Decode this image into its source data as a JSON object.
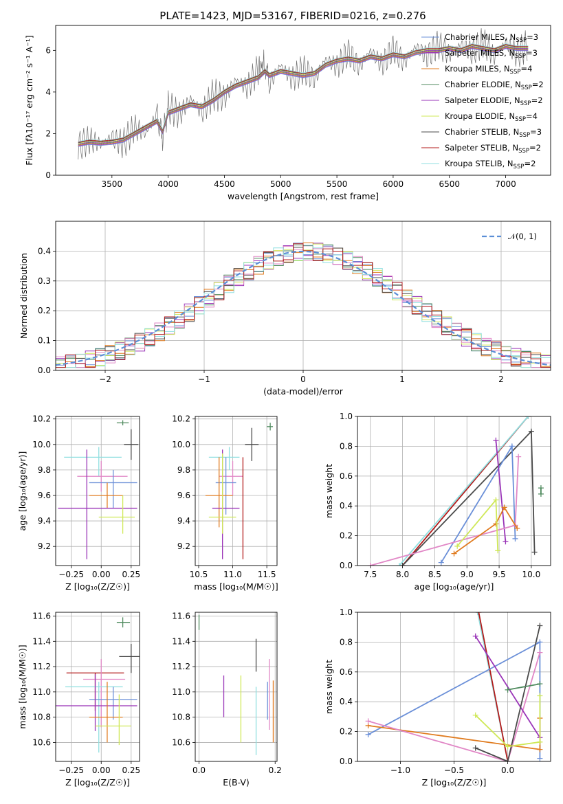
{
  "figure": {
    "title": "PLATE=1423, MJD=53167, FIBERID=0216, z=0.276"
  },
  "colors": [
    "#6a8fd8",
    "#9a35b8",
    "#e07b1f",
    "#4f8a5e",
    "#cfe857",
    "#4a4a4a",
    "#e187c6",
    "#8fdfe0",
    "#b31b1b"
  ],
  "chart_data": [
    {
      "id": "spectrum",
      "type": "line",
      "xlabel": "wavelength [Angstrom, rest frame]",
      "ylabel": "Flux [fλ10⁻¹⁷ erg cm⁻² s⁻¹ A⁻¹]",
      "xlim": [
        3000,
        7400
      ],
      "ylim": [
        0,
        7.2
      ],
      "xticks": [
        3500,
        4000,
        4500,
        5000,
        5500,
        6000,
        6500,
        7000
      ],
      "yticks": [
        0,
        2,
        4,
        6
      ],
      "grid": false,
      "legend_placement": "top-right",
      "legend": [
        {
          "label": "Chabrier MILES, N",
          "sub": "SSP",
          "tail": "=3",
          "color": "#6a8fd8"
        },
        {
          "label": "Salpeter MILES, N",
          "sub": "SSP",
          "tail": "=3",
          "color": "#9a35b8"
        },
        {
          "label": "Kroupa MILES, N",
          "sub": "SSP",
          "tail": "=4",
          "color": "#e07b1f"
        },
        {
          "label": "Chabrier ELODIE, N",
          "sub": "SSP",
          "tail": "=2",
          "color": "#4f8a5e"
        },
        {
          "label": "Salpeter ELODIE, N",
          "sub": "SSP",
          "tail": "=2",
          "color": "#9a35b8"
        },
        {
          "label": "Kroupa ELODIE, N",
          "sub": "SSP",
          "tail": "=4",
          "color": "#cfe857"
        },
        {
          "label": "Chabrier STELIB, N",
          "sub": "SSP",
          "tail": "=3",
          "color": "#4a4a4a"
        },
        {
          "label": "Salpeter STELIB, N",
          "sub": "SSP",
          "tail": "=2",
          "color": "#b31b1b"
        },
        {
          "label": "Kroupa STELIB, N",
          "sub": "SSP",
          "tail": "=2",
          "color": "#8fdfe0"
        }
      ],
      "model_curve": {
        "x": [
          3200,
          3300,
          3400,
          3500,
          3600,
          3700,
          3800,
          3900,
          3950,
          4000,
          4100,
          4200,
          4300,
          4400,
          4500,
          4600,
          4700,
          4800,
          4860,
          4900,
          5000,
          5100,
          5200,
          5300,
          5400,
          5500,
          5600,
          5700,
          5800,
          5900,
          6000,
          6100,
          6200,
          6300,
          6400,
          6500,
          6600,
          6700,
          6800,
          6900,
          7000,
          7100,
          7200
        ],
        "y": [
          1.5,
          1.6,
          1.55,
          1.6,
          1.7,
          2.0,
          2.3,
          2.6,
          2.1,
          3.0,
          3.2,
          3.4,
          3.3,
          3.6,
          4.0,
          4.3,
          4.5,
          4.7,
          5.0,
          4.8,
          5.0,
          4.9,
          4.8,
          4.9,
          5.3,
          5.5,
          5.6,
          5.5,
          5.7,
          5.6,
          5.8,
          5.7,
          5.9,
          6.0,
          6.0,
          6.1,
          6.0,
          6.2,
          6.1,
          6.0,
          6.2,
          6.1,
          6.1
        ]
      },
      "observed_spectrum": {
        "x": [
          3200,
          3300,
          3400,
          3500,
          3600,
          3700,
          3800,
          3900,
          3950,
          4000,
          4100,
          4200,
          4300,
          4400,
          4500,
          4600,
          4700,
          4800,
          4860,
          4900,
          5000,
          5100,
          5200,
          5300,
          5400,
          5500,
          5600,
          5700,
          5800,
          5900,
          6000,
          6100,
          6200,
          6300,
          6400,
          6500,
          6600,
          6700,
          6800,
          6900,
          7000,
          7100,
          7200
        ],
        "y": [
          1.4,
          1.7,
          1.5,
          1.8,
          1.5,
          2.3,
          2.0,
          2.9,
          1.8,
          3.3,
          2.9,
          3.7,
          3.0,
          3.9,
          3.7,
          4.6,
          4.2,
          5.1,
          5.4,
          4.4,
          5.3,
          4.6,
          5.1,
          4.6,
          5.6,
          5.2,
          5.9,
          5.2,
          6.0,
          5.3,
          6.1,
          5.4,
          6.2,
          5.7,
          6.3,
          5.8,
          6.3,
          5.9,
          6.4,
          5.7,
          6.4,
          5.8,
          6.3
        ]
      }
    },
    {
      "id": "residuals",
      "type": "histogram",
      "xlabel": "(data-model)/error",
      "ylabel": "Normed distribution",
      "xlim": [
        -2.5,
        2.5
      ],
      "ylim": [
        0,
        0.5
      ],
      "xticks": [
        -2,
        -1,
        0,
        1,
        2
      ],
      "yticks": [
        0.0,
        0.1,
        0.2,
        0.3,
        0.4
      ],
      "grid": true,
      "legend_placement": "top-right",
      "legend": [
        {
          "label": "𝒩(0, 1)",
          "color": "#5b8ed6",
          "style": "dashed"
        }
      ],
      "bin_width": 0.1,
      "bin_start": -2.5,
      "reference_curve": "normal(0,1)"
    },
    {
      "id": "age_vs_Z",
      "type": "errorbar",
      "xlabel": "Z [log₁₀(Z/Z☉)]",
      "ylabel": "age  [log₁₀(age/yr)]",
      "xlim": [
        -0.38,
        0.32
      ],
      "ylim": [
        9.05,
        10.22
      ],
      "xticks": [
        -0.25,
        0.0,
        0.25
      ],
      "xticklabels": [
        "−0.25",
        "0.00",
        "0.25"
      ],
      "yticks": [
        9.2,
        9.4,
        9.6,
        9.8,
        10.0,
        10.2
      ],
      "grid": true,
      "points": [
        {
          "x": 0.18,
          "y": 10.17,
          "xerr": [
            0.05,
            0.05
          ],
          "yerr": [
            0.02,
            0.02
          ],
          "color": "#4f8a5e"
        },
        {
          "x": 0.25,
          "y": 10.0,
          "xerr": [
            0.06,
            0.06
          ],
          "yerr": [
            0.12,
            0.12
          ],
          "color": "#4a4a4a"
        },
        {
          "x": -0.02,
          "y": 9.9,
          "xerr": [
            0.29,
            0.19
          ],
          "yerr": [
            0.15,
            0.08
          ],
          "color": "#8fdfe0"
        },
        {
          "x": 0.0,
          "y": 9.75,
          "xerr": [
            0.2,
            0.22
          ],
          "yerr": [
            0.12,
            0.12
          ],
          "color": "#e187c6"
        },
        {
          "x": 0.1,
          "y": 9.7,
          "xerr": [
            0.2,
            0.2
          ],
          "yerr": [
            0.2,
            0.1
          ],
          "color": "#6a8fd8"
        },
        {
          "x": 0.05,
          "y": 9.6,
          "xerr": [
            0.15,
            0.13
          ],
          "yerr": [
            0.1,
            0.1
          ],
          "color": "#e07b1f"
        },
        {
          "x": -0.12,
          "y": 9.5,
          "xerr": [
            0.24,
            0.42
          ],
          "yerr": [
            0.4,
            0.46
          ],
          "color": "#9a35b8"
        },
        {
          "x": 0.18,
          "y": 9.43,
          "xerr": [
            0.2,
            0.1
          ],
          "yerr": [
            0.13,
            0.17
          ],
          "color": "#cfe857"
        }
      ]
    },
    {
      "id": "age_vs_mass",
      "type": "errorbar",
      "xlabel": "mass [log₁₀(M/M☉)]",
      "ylabel": "",
      "xlim": [
        10.45,
        11.65
      ],
      "ylim": [
        9.05,
        10.22
      ],
      "xticks": [
        10.5,
        11.0,
        11.5
      ],
      "yticks": [
        9.2,
        9.4,
        9.6,
        9.8,
        10.0,
        10.2
      ],
      "grid": true,
      "points": [
        {
          "x": 11.55,
          "y": 10.14,
          "xerr": [
            0.05,
            0.04
          ],
          "yerr": [
            0.03,
            0.03
          ],
          "color": "#4f8a5e"
        },
        {
          "x": 11.28,
          "y": 10.0,
          "xerr": [
            0.1,
            0.1
          ],
          "yerr": [
            0.13,
            0.13
          ],
          "color": "#4a4a4a"
        },
        {
          "x": 10.95,
          "y": 9.9,
          "xerr": [
            0.3,
            0.15
          ],
          "yerr": [
            0.1,
            0.08
          ],
          "color": "#8fdfe0"
        },
        {
          "x": 11.0,
          "y": 9.75,
          "xerr": [
            0.2,
            0.15
          ],
          "yerr": [
            0.15,
            0.12
          ],
          "color": "#e187c6"
        },
        {
          "x": 10.9,
          "y": 9.7,
          "xerr": [
            0.15,
            0.15
          ],
          "yerr": [
            0.25,
            0.2
          ],
          "color": "#6a8fd8"
        },
        {
          "x": 10.8,
          "y": 9.6,
          "xerr": [
            0.2,
            0.2
          ],
          "yerr": [
            0.25,
            0.3
          ],
          "color": "#e07b1f"
        },
        {
          "x": 10.85,
          "y": 9.5,
          "xerr": [
            0.15,
            0.25
          ],
          "yerr": [
            0.4,
            0.46
          ],
          "color": "#9a35b8"
        },
        {
          "x": 10.85,
          "y": 9.43,
          "xerr": [
            0.2,
            0.2
          ],
          "yerr": [
            0.13,
            0.5
          ],
          "color": "#cfe857"
        },
        {
          "x": 11.15,
          "y": 9.6,
          "xerr": [
            0.0,
            0.0
          ],
          "yerr": [
            0.5,
            0.3
          ],
          "color": "#b31b1b"
        }
      ]
    },
    {
      "id": "weight_vs_age",
      "type": "line",
      "xlabel": "age  [log₁₀(age/yr)]",
      "ylabel": "mass weight",
      "xlim": [
        7.3,
        10.3
      ],
      "ylim": [
        0,
        1.0
      ],
      "xticks": [
        7.5,
        8.0,
        8.5,
        9.0,
        9.5,
        10.0
      ],
      "yticks": [
        0.0,
        0.2,
        0.4,
        0.6,
        0.8,
        1.0
      ],
      "grid": true,
      "series": [
        {
          "color": "#b31b1b",
          "x": [
            8.0,
            9.95
          ],
          "y": [
            0.0,
            1.0
          ]
        },
        {
          "color": "#8fdfe0",
          "x": [
            7.95,
            9.95
          ],
          "y": [
            0.0,
            1.0
          ]
        },
        {
          "color": "#4a4a4a",
          "x": [
            8.0,
            10.0,
            10.05
          ],
          "y": [
            0.0,
            0.9,
            0.09
          ]
        },
        {
          "color": "#6a8fd8",
          "x": [
            8.6,
            9.7,
            9.75
          ],
          "y": [
            0.02,
            0.8,
            0.18
          ]
        },
        {
          "color": "#9a35b8",
          "x": [
            9.45,
            9.6
          ],
          "y": [
            0.84,
            0.16
          ]
        },
        {
          "color": "#e187c6",
          "x": [
            7.5,
            9.75,
            9.8
          ],
          "y": [
            0.0,
            0.27,
            0.73
          ]
        },
        {
          "color": "#e07b1f",
          "x": [
            8.8,
            9.45,
            9.58,
            9.78
          ],
          "y": [
            0.08,
            0.28,
            0.39,
            0.25
          ]
        },
        {
          "color": "#cfe857",
          "x": [
            8.85,
            9.45,
            9.48
          ],
          "y": [
            0.13,
            0.44,
            0.1
          ]
        },
        {
          "color": "#4f8a5e",
          "x": [
            10.15,
            10.15
          ],
          "y": [
            0.48,
            0.52
          ]
        }
      ]
    },
    {
      "id": "mass_vs_Z",
      "type": "errorbar",
      "xlabel": "Z [log₁₀(Z/Z☉)]",
      "ylabel": "mass [log₁₀(M/M☉)]",
      "xlim": [
        -0.38,
        0.32
      ],
      "ylim": [
        10.45,
        11.63
      ],
      "xticks": [
        -0.25,
        0.0,
        0.25
      ],
      "xticklabels": [
        "−0.25",
        "0.00",
        "0.25"
      ],
      "yticks": [
        10.6,
        10.8,
        11.0,
        11.2,
        11.4,
        11.6
      ],
      "grid": true,
      "points": [
        {
          "x": 0.18,
          "y": 11.55,
          "xerr": [
            0.05,
            0.06
          ],
          "yerr": [
            0.04,
            0.04
          ],
          "color": "#4f8a5e"
        },
        {
          "x": 0.25,
          "y": 11.28,
          "xerr": [
            0.1,
            0.08
          ],
          "yerr": [
            0.13,
            0.1
          ],
          "color": "#4a4a4a"
        },
        {
          "x": -0.05,
          "y": 11.15,
          "xerr": [
            0.24,
            0.24
          ],
          "yerr": [
            0.3,
            0.0
          ],
          "color": "#b31b1b"
        },
        {
          "x": 0.0,
          "y": 11.1,
          "xerr": [
            0.15,
            0.2
          ],
          "yerr": [
            0.38,
            0.16
          ],
          "color": "#e187c6"
        },
        {
          "x": -0.02,
          "y": 11.04,
          "xerr": [
            0.28,
            0.2
          ],
          "yerr": [
            0.52,
            0.04
          ],
          "color": "#8fdfe0"
        },
        {
          "x": 0.1,
          "y": 10.94,
          "xerr": [
            0.2,
            0.2
          ],
          "yerr": [
            0.16,
            0.1
          ],
          "color": "#6a8fd8"
        },
        {
          "x": -0.05,
          "y": 10.89,
          "xerr": [
            0.33,
            0.35
          ],
          "yerr": [
            0.2,
            0.25
          ],
          "color": "#9a35b8"
        },
        {
          "x": 0.05,
          "y": 10.8,
          "xerr": [
            0.15,
            0.13
          ],
          "yerr": [
            0.2,
            0.28
          ],
          "color": "#e07b1f"
        },
        {
          "x": 0.15,
          "y": 10.73,
          "xerr": [
            0.2,
            0.1
          ],
          "yerr": [
            0.15,
            0.25
          ],
          "color": "#cfe857"
        }
      ]
    },
    {
      "id": "mass_vs_EBV",
      "type": "errorbar",
      "xlabel": "E(B-V)",
      "ylabel": "",
      "xlim": [
        -0.01,
        0.205
      ],
      "ylim": [
        10.45,
        11.63
      ],
      "xticks": [
        0.0,
        0.2
      ],
      "yticks": [
        10.6,
        10.8,
        11.0,
        11.2,
        11.4,
        11.6
      ],
      "grid": true,
      "points": [
        {
          "x": 0.0,
          "y": 11.55,
          "xerr": [
            0,
            0
          ],
          "yerr": [
            0.06,
            0.06
          ],
          "color": "#4f8a5e"
        },
        {
          "x": 0.065,
          "y": 10.95,
          "xerr": [
            0,
            0
          ],
          "yerr": [
            0.15,
            0.18
          ],
          "color": "#9a35b8"
        },
        {
          "x": 0.11,
          "y": 10.95,
          "xerr": [
            0,
            0
          ],
          "yerr": [
            0.35,
            0.18
          ],
          "color": "#cfe857"
        },
        {
          "x": 0.15,
          "y": 11.3,
          "xerr": [
            0,
            0
          ],
          "yerr": [
            0.14,
            0.12
          ],
          "color": "#4a4a4a"
        },
        {
          "x": 0.15,
          "y": 10.8,
          "xerr": [
            0,
            0
          ],
          "yerr": [
            0.3,
            0.24
          ],
          "color": "#8fdfe0"
        },
        {
          "x": 0.18,
          "y": 10.93,
          "xerr": [
            0,
            0
          ],
          "yerr": [
            0.15,
            0.15
          ],
          "color": "#6a8fd8"
        },
        {
          "x": 0.185,
          "y": 11.0,
          "xerr": [
            0,
            0
          ],
          "yerr": [
            0.3,
            0.26
          ],
          "color": "#e187c6"
        },
        {
          "x": 0.195,
          "y": 10.85,
          "xerr": [
            0,
            0
          ],
          "yerr": [
            0.25,
            0.24
          ],
          "color": "#e07b1f"
        }
      ]
    },
    {
      "id": "weight_vs_Z",
      "type": "line",
      "xlabel": "Z [log₁₀(Z/Z☉)]",
      "ylabel": "mass weight",
      "xlim": [
        -1.4,
        0.4
      ],
      "ylim": [
        0,
        1.0
      ],
      "xticks": [
        -1.0,
        -0.5,
        0.0
      ],
      "xticklabels": [
        "−1.0",
        "−0.5",
        "0.0"
      ],
      "yticks": [
        0.0,
        0.2,
        0.4,
        0.6,
        0.8,
        1.0
      ],
      "grid": true,
      "series": [
        {
          "color": "#8fdfe0",
          "x": [
            -0.28,
            0.0
          ],
          "y": [
            1.0,
            0.0
          ]
        },
        {
          "color": "#b31b1b",
          "x": [
            -0.27,
            0.0
          ],
          "y": [
            1.0,
            0.0
          ]
        },
        {
          "color": "#6a8fd8",
          "x": [
            -1.3,
            0.3,
            0.3
          ],
          "y": [
            0.18,
            0.8,
            0.02
          ]
        },
        {
          "color": "#e07b1f",
          "x": [
            -1.3,
            0.3,
            0.3
          ],
          "y": [
            0.24,
            0.08,
            0.29
          ]
        },
        {
          "color": "#e187c6",
          "x": [
            -1.3,
            0.0,
            0.3
          ],
          "y": [
            0.27,
            0.0,
            0.73
          ]
        },
        {
          "color": "#9a35b8",
          "x": [
            -0.3,
            0.3
          ],
          "y": [
            0.84,
            0.16
          ]
        },
        {
          "color": "#4a4a4a",
          "x": [
            -0.3,
            0.0,
            0.3
          ],
          "y": [
            0.09,
            0.0,
            0.91
          ]
        },
        {
          "color": "#4f8a5e",
          "x": [
            0.0,
            0.3
          ],
          "y": [
            0.48,
            0.52
          ]
        },
        {
          "color": "#cfe857",
          "x": [
            -0.3,
            0.0,
            0.3,
            0.3
          ],
          "y": [
            0.31,
            0.1,
            0.13,
            0.44
          ]
        }
      ]
    }
  ]
}
